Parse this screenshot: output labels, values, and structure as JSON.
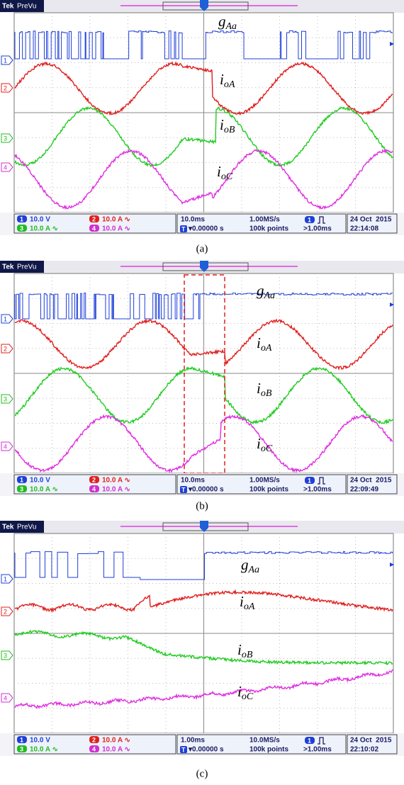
{
  "panels": [
    {
      "caption": "(a)",
      "brand": "Tek",
      "mode": "PreVu",
      "channels": [
        "1",
        "2",
        "3",
        "4"
      ],
      "scales": [
        "10.0 V",
        "10.0 A ∿",
        "10.0 A ∿",
        "10.0 A ∿"
      ],
      "timebase": "10.0ms",
      "rate": "1.00MS/s",
      "trigger_channel": "1",
      "delay_badge": "T",
      "delay": "▾0.00000 s",
      "points": "100k points",
      "trigger_level": ">1.00ms",
      "date": "24 Oct  2015",
      "time": "22:14:08",
      "labels": [
        {
          "base": "g",
          "sub": "Aa"
        },
        {
          "base": "i",
          "sub": "oA"
        },
        {
          "base": "i",
          "sub": "oB"
        },
        {
          "base": "i",
          "sub": "oC"
        }
      ]
    },
    {
      "caption": "(b)",
      "brand": "Tek",
      "mode": "PreVu",
      "channels": [
        "1",
        "2",
        "3",
        "4"
      ],
      "scales": [
        "10.0 V",
        "10.0 A ∿",
        "10.0 A ∿",
        "10.0 A ∿"
      ],
      "timebase": "10.0ms",
      "rate": "1.00MS/s",
      "trigger_channel": "1",
      "delay_badge": "T",
      "delay": "▾0.00000 s",
      "points": "100k points",
      "trigger_level": ">1.00ms",
      "date": "24 Oct  2015",
      "time": "22:09:49",
      "labels": [
        {
          "base": "g",
          "sub": "Aa"
        },
        {
          "base": "i",
          "sub": "oA"
        },
        {
          "base": "i",
          "sub": "oB"
        },
        {
          "base": "i",
          "sub": "oC"
        }
      ]
    },
    {
      "caption": "(c)",
      "brand": "Tek",
      "mode": "PreVu",
      "channels": [
        "1",
        "2",
        "3",
        "4"
      ],
      "scales": [
        "10.0 V",
        "10.0 A ∿",
        "10.0 A ∿",
        "10.0 A ∿"
      ],
      "timebase": "1.00ms",
      "rate": "10.0MS/s",
      "trigger_channel": "1",
      "delay_badge": "T",
      "delay": "▾0.00000 s",
      "points": "100k points",
      "trigger_level": ">1.00ms",
      "date": "24 Oct  2015",
      "time": "22:10:02",
      "labels": [
        {
          "base": "g",
          "sub": "Aa"
        },
        {
          "base": "i",
          "sub": "oA"
        },
        {
          "base": "i",
          "sub": "oB"
        },
        {
          "base": "i",
          "sub": "oC"
        }
      ]
    }
  ]
}
